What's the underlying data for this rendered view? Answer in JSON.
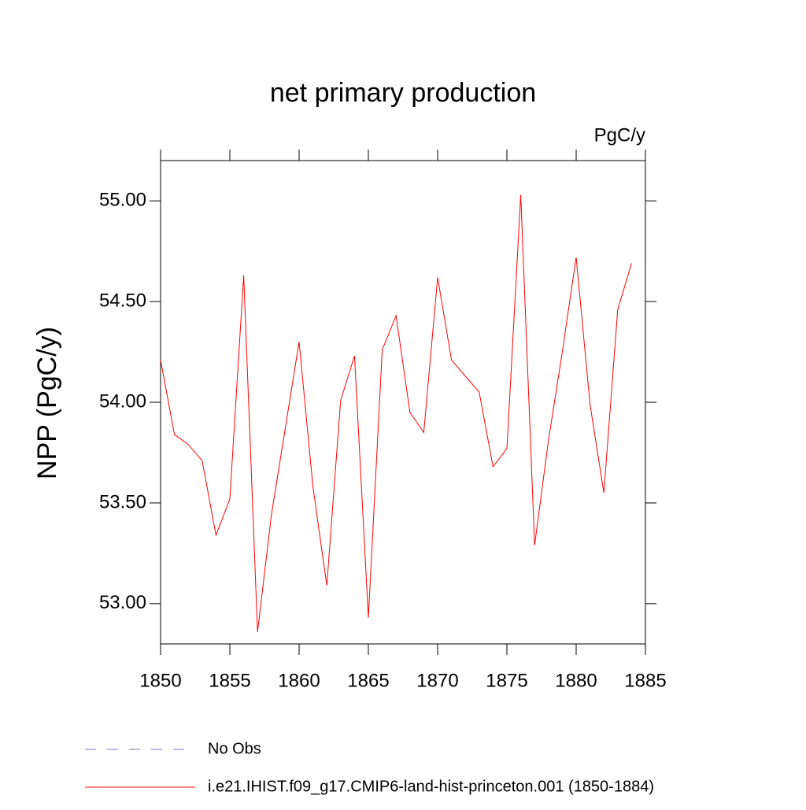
{
  "chart_data": {
    "type": "line",
    "title": "net primary production",
    "units_label": "PgC/y",
    "y_label": "NPP  (PgC/y)",
    "x": [
      1850,
      1851,
      1852,
      1853,
      1854,
      1855,
      1856,
      1857,
      1858,
      1859,
      1860,
      1861,
      1862,
      1863,
      1864,
      1865,
      1866,
      1867,
      1868,
      1869,
      1870,
      1871,
      1872,
      1873,
      1874,
      1875,
      1876,
      1877,
      1878,
      1879,
      1880,
      1881,
      1882,
      1883,
      1884
    ],
    "series": [
      {
        "name": "i.e21.IHIST.f09_g17.CMIP6-land-hist-princeton.001 (1850-1884)",
        "color": "#ff0000",
        "values": [
          54.21,
          53.84,
          53.79,
          53.71,
          53.34,
          53.52,
          54.63,
          52.86,
          53.44,
          53.87,
          54.3,
          53.58,
          53.09,
          54.01,
          54.23,
          52.93,
          54.26,
          54.43,
          53.95,
          53.85,
          54.62,
          54.21,
          54.13,
          54.05,
          53.68,
          53.77,
          55.03,
          53.29,
          53.81,
          54.25,
          54.72,
          53.99,
          53.55,
          54.46,
          54.69
        ]
      }
    ],
    "reference_legend": [
      {
        "name": "No Obs",
        "color": "#7b6fc8",
        "dashed": true
      }
    ],
    "xlim": [
      1850,
      1885
    ],
    "xticks": [
      1850,
      1855,
      1860,
      1865,
      1870,
      1875,
      1880,
      1885
    ],
    "ylim": [
      52.8,
      55.2
    ],
    "yticks": [
      {
        "value": 53,
        "label": "53.00"
      },
      {
        "value": 53.5,
        "label": "53.50"
      },
      {
        "value": 54,
        "label": "54.00"
      },
      {
        "value": 54.5,
        "label": "54.50"
      },
      {
        "value": 55,
        "label": "55.00"
      }
    ]
  }
}
